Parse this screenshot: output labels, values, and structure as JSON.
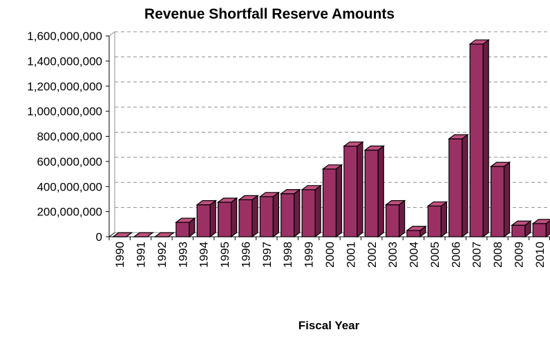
{
  "colors": {
    "bar_front": "#9b3064",
    "bar_top": "#c0507f",
    "bar_side": "#6a1d42",
    "bar_outline": "#000000",
    "grid": "#8c8c8c",
    "axis": "#000000"
  },
  "chart_data": {
    "type": "bar",
    "title": "Revenue Shortfall Reserve Amounts",
    "xlabel": "Fiscal Year",
    "ylabel": "",
    "categories": [
      "1990",
      "1991",
      "1992",
      "1993",
      "1994",
      "1995",
      "1996",
      "1997",
      "1998",
      "1999",
      "2000",
      "2001",
      "2002",
      "2003",
      "2004",
      "2005",
      "2006",
      "2007",
      "2008",
      "2009",
      "2010"
    ],
    "values": [
      0,
      0,
      0,
      115000000,
      255000000,
      275000000,
      295000000,
      320000000,
      343000000,
      375000000,
      540000000,
      722000000,
      690000000,
      255000000,
      50000000,
      245000000,
      780000000,
      1535000000,
      560000000,
      92000000,
      105000000
    ],
    "ylim": [
      0,
      1600000000
    ],
    "yticks": [
      0,
      200000000,
      400000000,
      600000000,
      800000000,
      1000000000,
      1200000000,
      1400000000,
      1600000000
    ],
    "ytick_labels": [
      "0",
      "200,000,000",
      "400,000,000",
      "600,000,000",
      "800,000,000",
      "1,000,000,000",
      "1,200,000,000",
      "1,400,000,000",
      "1,600,000,000"
    ],
    "grid": true,
    "legend": "none",
    "style": "3d-bar"
  }
}
